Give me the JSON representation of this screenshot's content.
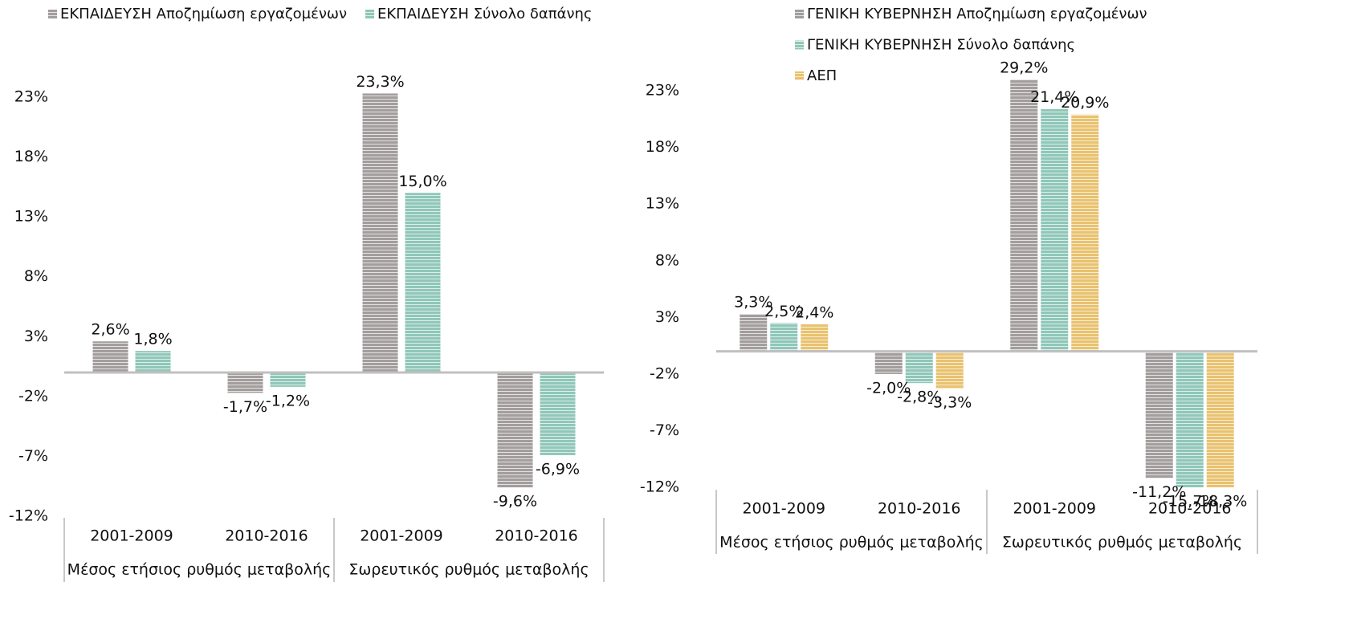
{
  "chart_data": [
    {
      "type": "bar",
      "categories": [
        "2001-2009",
        "2010-2016",
        "2001-2009",
        "2010-2016"
      ],
      "groups": [
        "Μέσος ετήσιος ρυθμός μεταβολής",
        "Σωρευτικός ρυθμός μεταβολής"
      ],
      "series": [
        {
          "name": "ΕΚΠΑΙΔΕΥΣΗ Αποζημίωση εργαζομένων",
          "color": "#a39d9d",
          "values": [
            2.6,
            -1.7,
            23.3,
            -9.6
          ],
          "value_labels": [
            "2,6%",
            "-1,7%",
            "23,3%",
            "-9,6%"
          ]
        },
        {
          "name": "ΕΚΠΑΙΔΕΥΣΗ Σύνολο δαπάνης",
          "color": "#8fc7b8",
          "values": [
            1.8,
            -1.2,
            15.0,
            -6.9
          ],
          "value_labels": [
            "1,8%",
            "-1,2%",
            "15,0%",
            "-6,9%"
          ]
        }
      ],
      "ylim": [
        -12,
        24
      ],
      "yticks": [
        {
          "value": -12,
          "label": "-12%"
        },
        {
          "value": -7,
          "label": "-7%"
        },
        {
          "value": -2,
          "label": "-2%"
        },
        {
          "value": 3,
          "label": "3%"
        },
        {
          "value": 8,
          "label": "8%"
        },
        {
          "value": 13,
          "label": "13%"
        },
        {
          "value": 18,
          "label": "18%"
        },
        {
          "value": 23,
          "label": "23%"
        }
      ],
      "legend": "top"
    },
    {
      "type": "bar",
      "categories": [
        "2001-2009",
        "2010-2016",
        "2001-2009",
        "2010-2016"
      ],
      "groups": [
        "Μέσος ετήσιος ρυθμός μεταβολής",
        "Σωρευτικός ρυθμός μεταβολής"
      ],
      "series": [
        {
          "name": "ΓΕΝΙΚΗ ΚΥΒΕΡΝΗΣΗ Αποζημίωση εργαζομένων",
          "color": "#a39d9d",
          "values": [
            3.3,
            -2.0,
            29.2,
            -11.2
          ],
          "value_labels": [
            "3,3%",
            "-2,0%",
            "29,2%",
            "-11,2%"
          ]
        },
        {
          "name": "ΓΕΝΙΚΗ ΚΥΒΕΡΝΗΣΗ Σύνολο δαπάνης",
          "color": "#8fc7b8",
          "values": [
            2.5,
            -2.8,
            21.4,
            -15.7
          ],
          "value_labels": [
            "2,5%",
            "-2,8%",
            "21,4%",
            "-15,7%"
          ]
        },
        {
          "name": "ΑΕΠ",
          "color": "#e9c26f",
          "values": [
            2.4,
            -3.3,
            20.9,
            -18.3
          ],
          "value_labels": [
            "2,4%",
            "-3,3%",
            "20,9%",
            "-18,3%"
          ]
        }
      ],
      "ylim": [
        -12,
        24
      ],
      "yticks": [
        {
          "value": -12,
          "label": "-12%"
        },
        {
          "value": -7,
          "label": "-7%"
        },
        {
          "value": -2,
          "label": "-2%"
        },
        {
          "value": 3,
          "label": "3%"
        },
        {
          "value": 8,
          "label": "8%"
        },
        {
          "value": 13,
          "label": "13%"
        },
        {
          "value": 18,
          "label": "18%"
        },
        {
          "value": 23,
          "label": "23%"
        }
      ],
      "legend": "top-stacked"
    }
  ]
}
